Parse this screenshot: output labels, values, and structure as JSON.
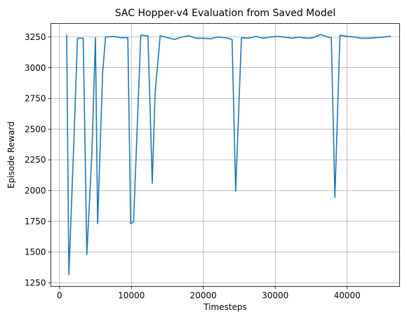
{
  "chart_data": {
    "type": "line",
    "title": "SAC Hopper-v4 Evaluation from Saved Model",
    "xlabel": "Timesteps",
    "ylabel": "Episode Reward",
    "xlim": [
      -1200,
      47300
    ],
    "ylim": [
      1220,
      3360
    ],
    "xticks": [
      0,
      10000,
      20000,
      30000,
      40000
    ],
    "yticks": [
      1250,
      1500,
      1750,
      2000,
      2250,
      2500,
      2750,
      3000,
      3250
    ],
    "grid": true,
    "series": [
      {
        "color": "#1f77b4",
        "x": [
          1000,
          1300,
          2000,
          2500,
          3300,
          3800,
          4500,
          5000,
          5300,
          6000,
          6400,
          7500,
          8500,
          9500,
          9900,
          10300,
          11300,
          12300,
          12900,
          13300,
          14000,
          15000,
          16000,
          17000,
          18000,
          19000,
          20000,
          21000,
          22000,
          23000,
          24000,
          24500,
          25300,
          26300,
          27300,
          28300,
          29300,
          30300,
          31300,
          32300,
          33300,
          34300,
          35300,
          36300,
          37300,
          37800,
          38300,
          39000,
          40000,
          41000,
          42000,
          43000,
          44000,
          45000,
          46000
        ],
        "y": [
          3265,
          1315,
          2400,
          3240,
          3240,
          1480,
          2300,
          3245,
          1730,
          2960,
          3250,
          3255,
          3245,
          3245,
          1730,
          1745,
          3265,
          3260,
          2060,
          2800,
          3260,
          3245,
          3230,
          3250,
          3260,
          3240,
          3240,
          3235,
          3250,
          3245,
          3230,
          1995,
          3245,
          3240,
          3255,
          3240,
          3250,
          3255,
          3250,
          3240,
          3250,
          3240,
          3245,
          3270,
          3250,
          3245,
          1945,
          3265,
          3255,
          3250,
          3240,
          3240,
          3245,
          3250,
          3255
        ]
      }
    ]
  }
}
